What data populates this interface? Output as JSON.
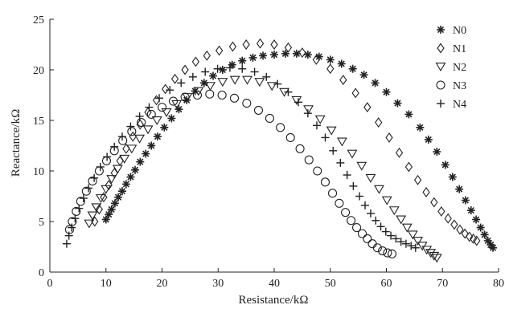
{
  "chart_data": {
    "type": "scatter",
    "title": "",
    "xlabel": "Resistance/kΩ",
    "ylabel": "Reactance/kΩ",
    "xlim": [
      0,
      80
    ],
    "ylim": [
      0,
      25
    ],
    "xticks": [
      "0",
      "10",
      "20",
      "30",
      "40",
      "50",
      "60",
      "70",
      "80"
    ],
    "yticks": [
      "0",
      "5",
      "10",
      "15",
      "20",
      "25"
    ],
    "grid": false,
    "legend_position": "top-right",
    "series": [
      {
        "name": "N0",
        "marker": "asterisk",
        "points": [
          [
            10,
            5.2
          ],
          [
            10.5,
            5.7
          ],
          [
            11,
            6.2
          ],
          [
            11.6,
            6.8
          ],
          [
            12.2,
            7.4
          ],
          [
            12.9,
            8.0
          ],
          [
            13.6,
            8.7
          ],
          [
            14.4,
            9.4
          ],
          [
            15.2,
            10.1
          ],
          [
            16.1,
            10.9
          ],
          [
            17.1,
            11.7
          ],
          [
            18.1,
            12.5
          ],
          [
            19.2,
            13.4
          ],
          [
            20.4,
            14.3
          ],
          [
            21.7,
            15.2
          ],
          [
            23,
            16.1
          ],
          [
            24.4,
            17.0
          ],
          [
            25.9,
            17.9
          ],
          [
            27.5,
            18.7
          ],
          [
            29.1,
            19.4
          ],
          [
            30.8,
            20.0
          ],
          [
            32.5,
            20.5
          ],
          [
            34.3,
            20.9
          ],
          [
            36.2,
            21.2
          ],
          [
            38,
            21.4
          ],
          [
            40,
            21.5
          ],
          [
            42,
            21.6
          ],
          [
            44,
            21.6
          ],
          [
            46,
            21.5
          ],
          [
            48,
            21.3
          ],
          [
            50,
            21.0
          ],
          [
            52,
            20.6
          ],
          [
            54,
            20.1
          ],
          [
            56,
            19.5
          ],
          [
            58,
            18.7
          ],
          [
            60,
            17.8
          ],
          [
            62,
            16.7
          ],
          [
            64,
            15.6
          ],
          [
            66,
            14.3
          ],
          [
            67.5,
            13.1
          ],
          [
            69,
            11.9
          ],
          [
            70.5,
            10.6
          ],
          [
            71.8,
            9.4
          ],
          [
            73,
            8.2
          ],
          [
            74.1,
            7.1
          ],
          [
            75.1,
            6.1
          ],
          [
            76,
            5.2
          ],
          [
            76.8,
            4.4
          ],
          [
            77.5,
            3.7
          ],
          [
            78.1,
            3.1
          ],
          [
            78.6,
            2.7
          ],
          [
            79,
            2.4
          ]
        ]
      },
      {
        "name": "N1",
        "marker": "diamond",
        "points": [
          [
            8,
            5.0
          ],
          [
            8.8,
            6.2
          ],
          [
            9.6,
            7.4
          ],
          [
            10.5,
            8.6
          ],
          [
            11.5,
            9.8
          ],
          [
            12.5,
            11.0
          ],
          [
            13.6,
            12.2
          ],
          [
            14.8,
            13.4
          ],
          [
            16.1,
            14.6
          ],
          [
            17.5,
            15.8
          ],
          [
            19,
            17.0
          ],
          [
            20.6,
            18.1
          ],
          [
            22.3,
            19.1
          ],
          [
            24.1,
            20.0
          ],
          [
            26,
            20.8
          ],
          [
            28,
            21.4
          ],
          [
            30.2,
            21.9
          ],
          [
            32.6,
            22.3
          ],
          [
            35,
            22.5
          ],
          [
            37.5,
            22.6
          ],
          [
            40,
            22.5
          ],
          [
            42.5,
            22.2
          ],
          [
            45,
            21.7
          ],
          [
            47.5,
            21.0
          ],
          [
            50,
            20.1
          ],
          [
            52.3,
            19.0
          ],
          [
            54.5,
            17.7
          ],
          [
            56.6,
            16.3
          ],
          [
            58.6,
            14.8
          ],
          [
            60.5,
            13.3
          ],
          [
            62.3,
            11.8
          ],
          [
            64,
            10.4
          ],
          [
            65.6,
            9.1
          ],
          [
            67.1,
            7.9
          ],
          [
            68.5,
            6.9
          ],
          [
            69.8,
            6.0
          ],
          [
            71,
            5.3
          ],
          [
            72.1,
            4.7
          ],
          [
            73.1,
            4.2
          ],
          [
            74,
            3.8
          ],
          [
            74.8,
            3.5
          ],
          [
            75.5,
            3.3
          ],
          [
            76.1,
            3.1
          ]
        ]
      },
      {
        "name": "N2",
        "marker": "triangle-down",
        "points": [
          [
            7,
            4.8
          ],
          [
            7.6,
            5.6
          ],
          [
            8.3,
            6.4
          ],
          [
            9.1,
            7.3
          ],
          [
            10,
            8.2
          ],
          [
            11,
            9.2
          ],
          [
            12.1,
            10.2
          ],
          [
            13.3,
            11.2
          ],
          [
            14.6,
            12.2
          ],
          [
            16,
            13.2
          ],
          [
            17.5,
            14.1
          ],
          [
            19.1,
            15.0
          ],
          [
            20.8,
            15.8
          ],
          [
            22.6,
            16.6
          ],
          [
            24.5,
            17.3
          ],
          [
            26.5,
            17.9
          ],
          [
            28.6,
            18.4
          ],
          [
            30.8,
            18.8
          ],
          [
            33,
            19.0
          ],
          [
            35.2,
            19.0
          ],
          [
            37.4,
            18.8
          ],
          [
            39.6,
            18.4
          ],
          [
            41.8,
            17.8
          ],
          [
            44,
            17.0
          ],
          [
            46.1,
            16.1
          ],
          [
            48.2,
            15.1
          ],
          [
            50.2,
            14.0
          ],
          [
            52.1,
            12.9
          ],
          [
            53.9,
            11.7
          ],
          [
            55.6,
            10.5
          ],
          [
            57.2,
            9.3
          ],
          [
            58.7,
            8.2
          ],
          [
            60.1,
            7.1
          ],
          [
            61.4,
            6.1
          ],
          [
            62.6,
            5.2
          ],
          [
            63.7,
            4.4
          ],
          [
            64.7,
            3.7
          ],
          [
            65.6,
            3.1
          ],
          [
            66.4,
            2.6
          ],
          [
            67.2,
            2.2
          ],
          [
            67.9,
            1.9
          ],
          [
            68.5,
            1.6
          ],
          [
            69,
            1.4
          ]
        ]
      },
      {
        "name": "N3",
        "marker": "circle",
        "points": [
          [
            3.5,
            4.2
          ],
          [
            4,
            5.0
          ],
          [
            4.7,
            6.0
          ],
          [
            5.5,
            7.0
          ],
          [
            6.5,
            8.0
          ],
          [
            7.6,
            9.0
          ],
          [
            8.8,
            10.0
          ],
          [
            10.1,
            11.0
          ],
          [
            11.5,
            12.0
          ],
          [
            13,
            13.0
          ],
          [
            14.6,
            13.9
          ],
          [
            16.3,
            14.8
          ],
          [
            18.1,
            15.6
          ],
          [
            20,
            16.3
          ],
          [
            22,
            16.9
          ],
          [
            24.1,
            17.3
          ],
          [
            26.3,
            17.5
          ],
          [
            28.5,
            17.6
          ],
          [
            30.7,
            17.5
          ],
          [
            32.9,
            17.2
          ],
          [
            35.1,
            16.7
          ],
          [
            37.2,
            16.0
          ],
          [
            39.2,
            15.2
          ],
          [
            41.1,
            14.3
          ],
          [
            42.9,
            13.3
          ],
          [
            44.6,
            12.2
          ],
          [
            46.2,
            11.1
          ],
          [
            47.7,
            10.0
          ],
          [
            49.1,
            8.9
          ],
          [
            50.4,
            7.8
          ],
          [
            51.6,
            6.8
          ],
          [
            52.7,
            5.9
          ],
          [
            53.7,
            5.1
          ],
          [
            54.7,
            4.4
          ],
          [
            55.7,
            3.8
          ],
          [
            56.6,
            3.3
          ],
          [
            57.5,
            2.8
          ],
          [
            58.4,
            2.4
          ],
          [
            59.3,
            2.1
          ],
          [
            60.2,
            1.9
          ],
          [
            61,
            1.8
          ]
        ]
      },
      {
        "name": "N4",
        "marker": "plus",
        "points": [
          [
            3,
            2.8
          ],
          [
            3.4,
            3.6
          ],
          [
            3.9,
            4.4
          ],
          [
            4.5,
            5.3
          ],
          [
            5.2,
            6.3
          ],
          [
            6,
            7.3
          ],
          [
            6.9,
            8.3
          ],
          [
            7.9,
            9.3
          ],
          [
            9,
            10.4
          ],
          [
            10.2,
            11.4
          ],
          [
            11.5,
            12.4
          ],
          [
            12.9,
            13.4
          ],
          [
            14.4,
            14.4
          ],
          [
            16,
            15.4
          ],
          [
            17.7,
            16.3
          ],
          [
            19.5,
            17.2
          ],
          [
            21.4,
            18.0
          ],
          [
            23.4,
            18.7
          ],
          [
            25.5,
            19.3
          ],
          [
            27.7,
            19.8
          ],
          [
            29.9,
            20.1
          ],
          [
            32.1,
            20.2
          ],
          [
            34.3,
            20.1
          ],
          [
            36.5,
            19.8
          ],
          [
            38.6,
            19.3
          ],
          [
            40.6,
            18.6
          ],
          [
            42.5,
            17.8
          ],
          [
            44.3,
            16.8
          ],
          [
            46,
            15.7
          ],
          [
            47.6,
            14.5
          ],
          [
            49.1,
            13.3
          ],
          [
            50.5,
            12.0
          ],
          [
            51.8,
            10.8
          ],
          [
            53,
            9.6
          ],
          [
            54.1,
            8.5
          ],
          [
            55.2,
            7.5
          ],
          [
            56.2,
            6.6
          ],
          [
            57.2,
            5.8
          ],
          [
            58.1,
            5.1
          ],
          [
            59,
            4.5
          ],
          [
            59.9,
            4.0
          ],
          [
            60.8,
            3.6
          ],
          [
            61.7,
            3.3
          ],
          [
            62.6,
            3.0
          ],
          [
            63.5,
            2.8
          ],
          [
            64.4,
            2.6
          ],
          [
            65.2,
            2.4
          ]
        ]
      }
    ]
  }
}
